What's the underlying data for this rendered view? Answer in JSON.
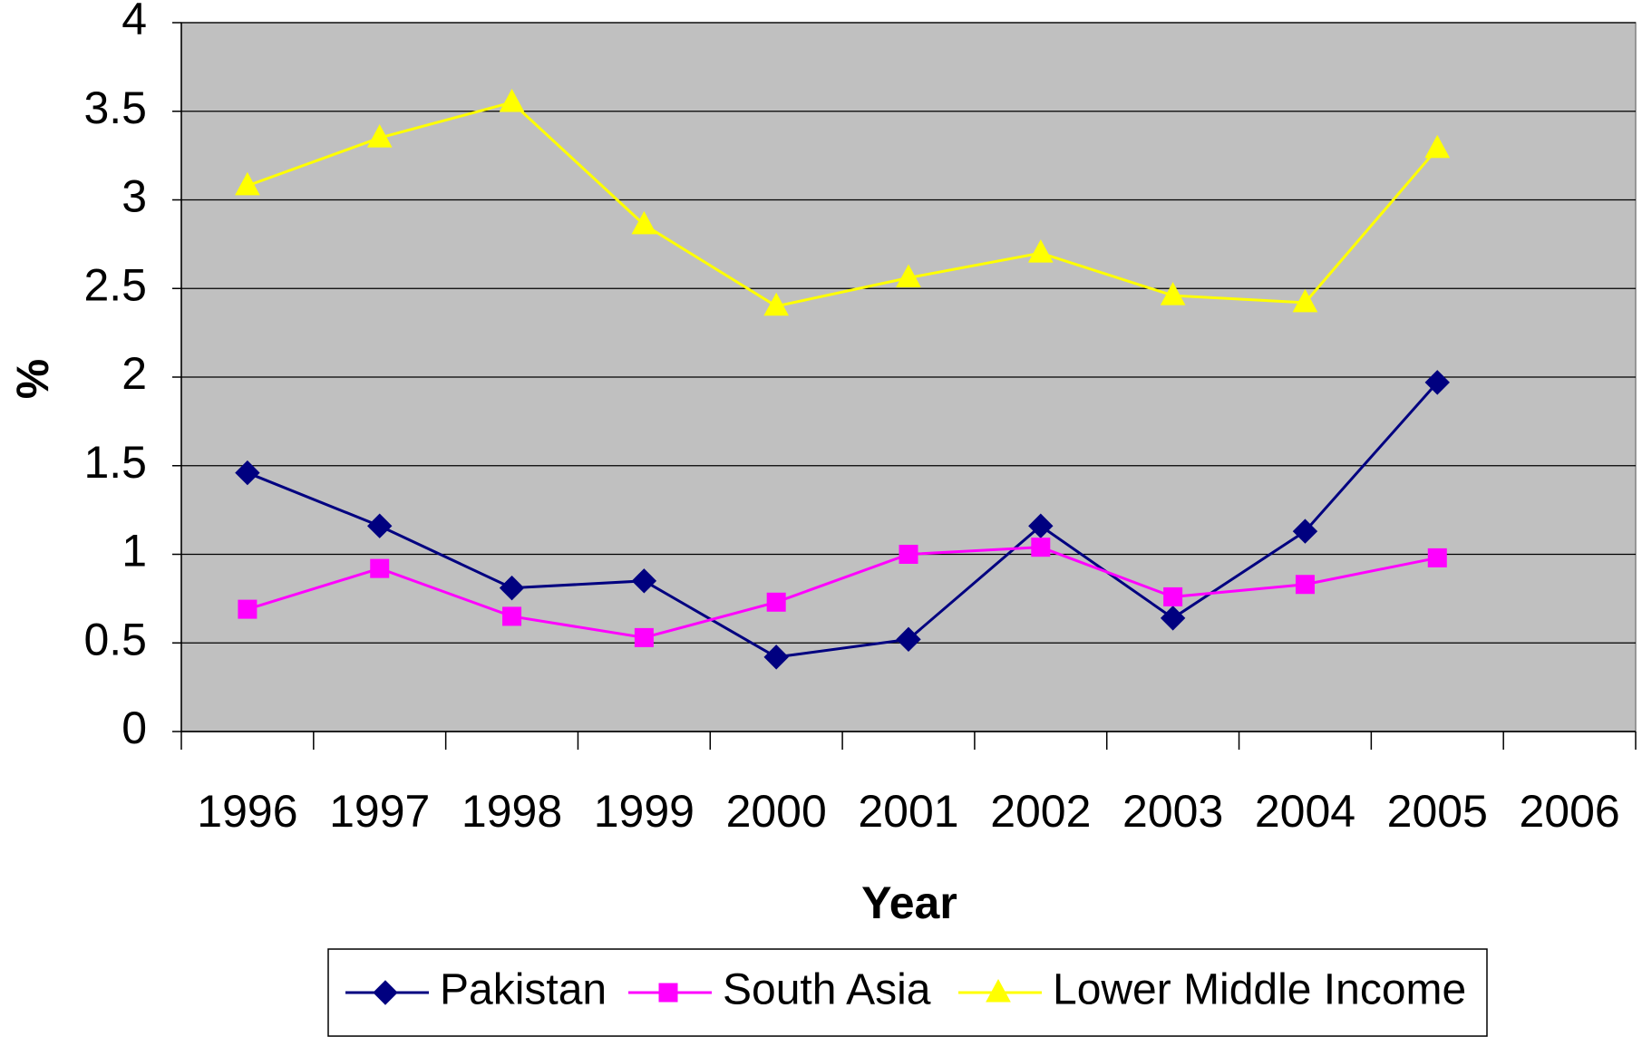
{
  "chart_data": {
    "type": "line",
    "x_label": "Year",
    "y_label": "%",
    "categories": [
      "1996",
      "1997",
      "1998",
      "1999",
      "2000",
      "2001",
      "2002",
      "2003",
      "2004",
      "2005",
      "2006"
    ],
    "series": [
      {
        "name": "Pakistan",
        "color": "#000080",
        "marker": "diamond",
        "values": [
          1.46,
          1.16,
          0.81,
          0.85,
          0.42,
          0.52,
          1.16,
          0.64,
          1.13,
          1.97,
          null
        ]
      },
      {
        "name": "South Asia",
        "color": "#FF00FF",
        "marker": "square",
        "values": [
          0.69,
          0.92,
          0.65,
          0.53,
          0.73,
          1.0,
          1.04,
          0.76,
          0.83,
          0.98,
          null
        ]
      },
      {
        "name": "Lower Middle Income",
        "color": "#FFFF00",
        "marker": "triangle",
        "values": [
          3.08,
          3.35,
          3.55,
          2.86,
          2.4,
          2.56,
          2.7,
          2.46,
          2.42,
          3.29,
          null
        ]
      }
    ],
    "ylim": [
      0,
      4
    ],
    "yticks": [
      0,
      0.5,
      1,
      1.5,
      2,
      2.5,
      3,
      3.5,
      4
    ],
    "grid": true,
    "plot_background": "#C0C0C0",
    "legend": "bottom"
  }
}
